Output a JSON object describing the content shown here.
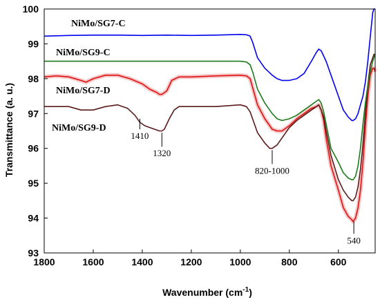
{
  "chart_data": {
    "type": "line",
    "title": "",
    "xlabel": "Wavenumber",
    "xlabel_unit": "(cm",
    "xlabel_sup": "-1",
    "xlabel_close": ")",
    "ylabel": "Transmittance (a. u.)",
    "xlim": [
      1800,
      450
    ],
    "ylim": [
      93,
      100
    ],
    "x_reversed": true,
    "grid": false,
    "x_ticks": [
      1800,
      1600,
      1400,
      1200,
      1000,
      800,
      600
    ],
    "y_ticks": [
      93,
      94,
      95,
      96,
      97,
      98,
      99,
      100
    ],
    "series": [
      {
        "name": "NiMo/SG7-C",
        "color": "#0000ee",
        "x": [
          1800,
          1700,
          1600,
          1500,
          1400,
          1300,
          1200,
          1100,
          1000,
          975,
          960,
          950,
          930,
          900,
          870,
          850,
          830,
          800,
          770,
          740,
          710,
          690,
          680,
          670,
          660,
          650,
          630,
          600,
          580,
          560,
          545,
          540,
          530,
          520,
          510,
          500,
          490,
          480,
          470,
          460,
          455,
          450
        ],
        "y": [
          99.22,
          99.24,
          99.25,
          99.25,
          99.24,
          99.25,
          99.24,
          99.25,
          99.27,
          99.26,
          99.22,
          99.05,
          98.6,
          98.3,
          98.1,
          98.0,
          97.95,
          97.95,
          98.0,
          98.15,
          98.5,
          98.75,
          98.85,
          98.8,
          98.65,
          98.5,
          98.1,
          97.5,
          97.1,
          96.9,
          96.8,
          96.8,
          96.85,
          97.0,
          97.25,
          97.5,
          97.9,
          98.5,
          99.2,
          99.9,
          100.0,
          100.0
        ]
      },
      {
        "name": "NiMo/SG9-C",
        "color": "#1a7a1a",
        "x": [
          1800,
          1700,
          1600,
          1500,
          1400,
          1300,
          1200,
          1100,
          1000,
          975,
          960,
          950,
          930,
          900,
          870,
          850,
          830,
          800,
          770,
          740,
          710,
          690,
          680,
          670,
          660,
          650,
          630,
          600,
          580,
          560,
          545,
          540,
          530,
          520,
          510,
          500,
          490,
          480,
          470,
          460,
          455,
          450
        ],
        "y": [
          98.5,
          98.5,
          98.5,
          98.5,
          98.5,
          98.5,
          98.5,
          98.5,
          98.5,
          98.48,
          98.4,
          98.2,
          97.7,
          97.3,
          97.0,
          96.85,
          96.8,
          96.85,
          96.95,
          97.1,
          97.25,
          97.35,
          97.4,
          97.3,
          97.05,
          96.7,
          96.0,
          95.6,
          95.3,
          95.15,
          95.1,
          95.1,
          95.2,
          95.5,
          96.0,
          96.7,
          97.3,
          97.8,
          98.2,
          98.5,
          98.6,
          98.7
        ]
      },
      {
        "name": "NiMo/SG7-D",
        "color": "#dd1111",
        "x": [
          1800,
          1750,
          1700,
          1650,
          1630,
          1600,
          1550,
          1500,
          1450,
          1400,
          1370,
          1340,
          1330,
          1320,
          1300,
          1280,
          1250,
          1200,
          1100,
          1000,
          975,
          960,
          950,
          930,
          900,
          870,
          850,
          830,
          800,
          770,
          740,
          710,
          690,
          680,
          670,
          660,
          650,
          630,
          600,
          580,
          560,
          545,
          540,
          535,
          530,
          520,
          510,
          500,
          490,
          480,
          470,
          460,
          455,
          450
        ],
        "y": [
          98.05,
          98.08,
          98.05,
          97.95,
          97.9,
          98.0,
          98.1,
          98.1,
          98.0,
          97.85,
          97.7,
          97.6,
          97.55,
          97.55,
          97.65,
          97.95,
          98.05,
          98.05,
          98.08,
          98.1,
          98.08,
          98.0,
          97.75,
          97.25,
          96.85,
          96.55,
          96.5,
          96.5,
          96.65,
          96.85,
          97.0,
          97.15,
          97.2,
          97.25,
          97.1,
          96.8,
          96.3,
          95.5,
          94.8,
          94.3,
          94.05,
          93.95,
          93.9,
          93.95,
          94.0,
          94.3,
          94.8,
          95.6,
          96.6,
          97.5,
          98.1,
          98.3,
          98.3,
          98.2
        ]
      },
      {
        "name": "NiMo/SG9-D",
        "color": "#5a1a1a",
        "x": [
          1800,
          1750,
          1700,
          1650,
          1600,
          1550,
          1500,
          1460,
          1430,
          1410,
          1390,
          1370,
          1350,
          1330,
          1320,
          1310,
          1290,
          1270,
          1250,
          1200,
          1100,
          1000,
          975,
          960,
          950,
          930,
          900,
          880,
          870,
          860,
          850,
          830,
          800,
          770,
          740,
          710,
          690,
          680,
          670,
          660,
          650,
          630,
          600,
          580,
          560,
          545,
          540,
          535,
          530,
          520,
          510,
          500,
          490,
          480,
          470,
          460,
          455,
          450
        ],
        "y": [
          97.2,
          97.2,
          97.2,
          97.1,
          97.1,
          97.2,
          97.25,
          97.15,
          96.95,
          96.75,
          96.65,
          96.6,
          96.55,
          96.5,
          96.5,
          96.55,
          96.85,
          97.1,
          97.2,
          97.2,
          97.2,
          97.25,
          97.2,
          97.05,
          96.85,
          96.45,
          96.15,
          96.0,
          96.0,
          96.05,
          96.1,
          96.3,
          96.6,
          96.8,
          96.95,
          97.1,
          97.2,
          97.25,
          97.1,
          96.9,
          96.5,
          95.8,
          95.1,
          94.8,
          94.6,
          94.5,
          94.5,
          94.55,
          94.6,
          94.9,
          95.4,
          96.1,
          97.0,
          97.8,
          98.4,
          98.6,
          98.7,
          98.7
        ]
      }
    ],
    "annotations": [
      {
        "text": "1410",
        "x": 1410,
        "y_from": 96.85,
        "y_to": 96.55
      },
      {
        "text": "1320",
        "x": 1320,
        "y_from": 96.45,
        "y_to": 96.05
      },
      {
        "text": "820-1000",
        "x": 870,
        "y_from": 95.95,
        "y_to": 95.55
      },
      {
        "text": "540",
        "x": 537,
        "y_from": 93.9,
        "y_to": 93.55
      }
    ]
  }
}
